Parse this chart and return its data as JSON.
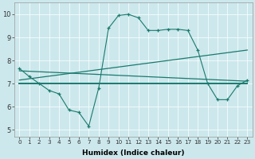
{
  "xlabel": "Humidex (Indice chaleur)",
  "bg_color": "#cce8ec",
  "line_color": "#1a7a6e",
  "x_ticks": [
    0,
    1,
    2,
    3,
    4,
    5,
    6,
    7,
    8,
    9,
    10,
    11,
    12,
    13,
    14,
    15,
    16,
    17,
    18,
    19,
    20,
    21,
    22,
    23
  ],
  "ylim": [
    4.7,
    10.5
  ],
  "xlim": [
    -0.5,
    23.5
  ],
  "yticks": [
    5,
    6,
    7,
    8,
    9,
    10
  ],
  "line1_x": [
    0,
    1,
    2,
    3,
    4,
    5,
    6,
    7,
    8,
    9,
    10,
    11,
    12,
    13,
    14,
    15,
    16,
    17,
    18,
    19,
    20,
    21,
    22,
    23
  ],
  "line1_y": [
    7.65,
    7.3,
    7.0,
    6.7,
    6.55,
    5.85,
    5.75,
    5.15,
    6.8,
    9.4,
    9.95,
    10.0,
    9.85,
    9.3,
    9.3,
    9.35,
    9.35,
    9.3,
    8.45,
    7.0,
    6.3,
    6.3,
    6.9,
    7.15
  ],
  "line2_x": [
    0,
    23
  ],
  "line2_y": [
    7.55,
    7.1
  ],
  "line3_x": [
    0,
    23
  ],
  "line3_y": [
    7.0,
    7.0
  ],
  "line4_x": [
    0,
    23
  ],
  "line4_y": [
    7.15,
    8.45
  ]
}
